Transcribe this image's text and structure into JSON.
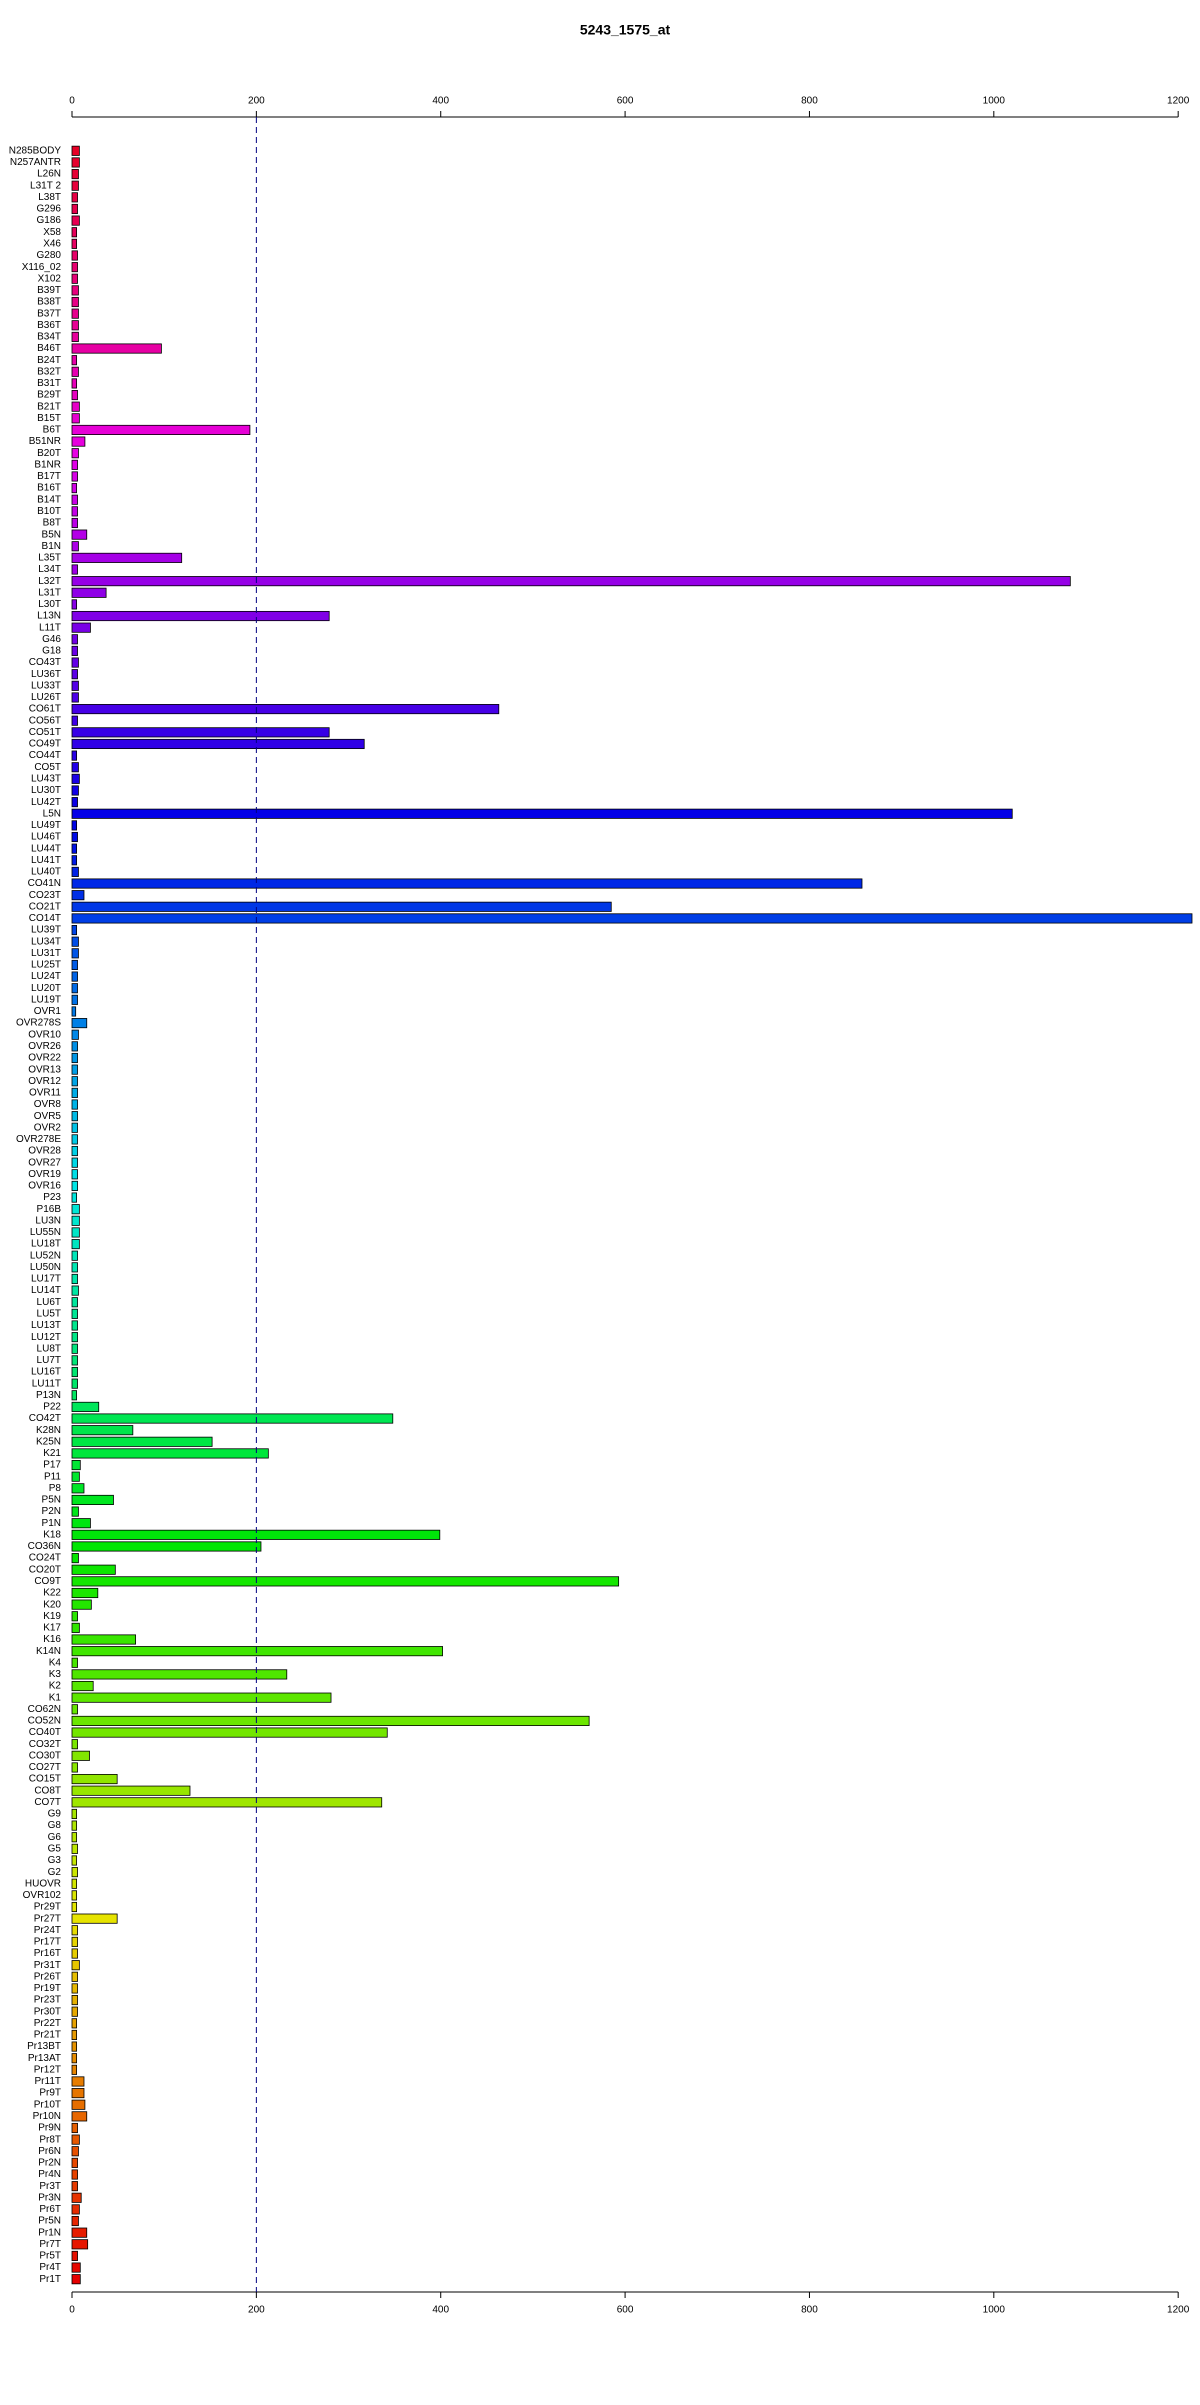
{
  "chart_data": {
    "type": "barh",
    "title": "5243_1575_at",
    "categories": [
      "N285BODY",
      "N257ANTR",
      "L26N",
      "L31T 2",
      "L38T",
      "G296",
      "G186",
      "X58",
      "X46",
      "G280",
      "X116_02",
      "X102",
      "B39T",
      "B38T",
      "B37T",
      "B36T",
      "B34T",
      "B46T",
      "B24T",
      "B32T",
      "B31T",
      "B29T",
      "B21T",
      "B15T",
      "B6T",
      "B51NR",
      "B20T",
      "B1NR",
      "B17T",
      "B16T",
      "B14T",
      "B10T",
      "B8T",
      "B5N",
      "B1N",
      "L35T",
      "L34T",
      "L32T",
      "L31T",
      "L30T",
      "L13N",
      "L11T",
      "G46",
      "G18",
      "CO43T",
      "LU36T",
      "LU33T",
      "LU26T",
      "CO61T",
      "CO56T",
      "CO51T",
      "CO49T",
      "CO44T",
      "CO5T",
      "LU43T",
      "LU30T",
      "LU42T",
      "L5N",
      "LU49T",
      "LU46T",
      "LU44T",
      "LU41T",
      "LU40T",
      "CO41N",
      "CO23T",
      "CO21T",
      "CO14T",
      "LU39T",
      "LU34T",
      "LU31T",
      "LU25T",
      "LU24T",
      "LU20T",
      "LU19T",
      "OVR1",
      "OVR278S",
      "OVR10",
      "OVR26",
      "OVR22",
      "OVR13",
      "OVR12",
      "OVR11",
      "OVR8",
      "OVR5",
      "OVR2",
      "OVR278E",
      "OVR28",
      "OVR27",
      "OVR19",
      "OVR16",
      "P23",
      "P16B",
      "LU3N",
      "LU55N",
      "LU18T",
      "LU52N",
      "LU50N",
      "LU17T",
      "LU14T",
      "LU6T",
      "LU5T",
      "LU13T",
      "LU12T",
      "LU8T",
      "LU7T",
      "LU16T",
      "LU11T",
      "P13N",
      "P22",
      "CO42T",
      "K28N",
      "K25N",
      "K21",
      "P17",
      "P11",
      "P8",
      "P5N",
      "P2N",
      "P1N",
      "K18",
      "CO36N",
      "CO24T",
      "CO20T",
      "CO9T",
      "K22",
      "K20",
      "K19",
      "K17",
      "K16",
      "K14N",
      "K4",
      "K3",
      "K2",
      "K1",
      "CO62N",
      "CO52N",
      "CO40T",
      "CO32T",
      "CO30T",
      "CO27T",
      "CO15T",
      "CO8T",
      "CO7T",
      "G9",
      "G8",
      "G6",
      "G5",
      "G3",
      "G2",
      "HUOVR",
      "OVR102",
      "Pr29T",
      "Pr27T",
      "Pr24T",
      "Pr17T",
      "Pr16T",
      "Pr31T",
      "Pr26T",
      "Pr19T",
      "Pr23T",
      "Pr30T",
      "Pr22T",
      "Pr21T",
      "Pr13BT",
      "Pr13AT",
      "Pr12T",
      "Pr11T",
      "Pr9T",
      "Pr10T",
      "Pr10N",
      "Pr9N",
      "Pr8T",
      "Pr6N",
      "Pr2N",
      "Pr4N",
      "Pr3T",
      "Pr3N",
      "Pr6T",
      "Pr5N",
      "Pr1N",
      "Pr7T",
      "Pr5T",
      "Pr4T",
      "Pr1T"
    ],
    "values": [
      8,
      8,
      7,
      7,
      6,
      6,
      8,
      5,
      5,
      6,
      6,
      6,
      7,
      7,
      7,
      7,
      7,
      97,
      5,
      7,
      5,
      6,
      8,
      8,
      193,
      14,
      7,
      6,
      6,
      5,
      6,
      6,
      6,
      16,
      7,
      119,
      6,
      1083,
      37,
      5,
      279,
      20,
      6,
      6,
      7,
      6,
      7,
      7,
      463,
      6,
      279,
      317,
      5,
      7,
      8,
      7,
      6,
      1020,
      5,
      6,
      5,
      5,
      7,
      857,
      13,
      585,
      1215,
      5,
      7,
      7,
      6,
      6,
      6,
      6,
      4,
      16,
      7,
      6,
      6,
      6,
      6,
      6,
      6,
      6,
      6,
      6,
      6,
      6,
      6,
      6,
      5,
      8,
      8,
      8,
      8,
      6,
      6,
      6,
      7,
      6,
      6,
      6,
      6,
      6,
      6,
      6,
      6,
      5,
      29,
      348,
      66,
      152,
      213,
      9,
      8,
      13,
      45,
      7,
      20,
      399,
      205,
      7,
      47,
      593,
      28,
      21,
      6,
      8,
      69,
      402,
      6,
      233,
      23,
      281,
      6,
      561,
      342,
      6,
      19,
      6,
      49,
      128,
      336,
      5,
      5,
      5,
      6,
      5,
      6,
      5,
      5,
      5,
      49,
      6,
      6,
      6,
      8,
      6,
      6,
      6,
      6,
      5,
      5,
      5,
      5,
      5,
      13,
      13,
      14,
      16,
      6,
      8,
      7,
      6,
      6,
      6,
      10,
      8,
      7,
      16,
      17,
      6,
      9,
      9
    ],
    "color_scheme": "rainbow",
    "xlim": [
      0,
      1215
    ],
    "xticks": [
      0,
      200,
      400,
      600,
      800,
      1000,
      1200
    ],
    "reference_line": 200
  }
}
